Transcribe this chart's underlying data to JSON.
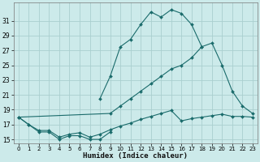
{
  "xlabel": "Humidex (Indice chaleur)",
  "bg_color": "#cceaea",
  "grid_color": "#aacfcf",
  "line_color": "#1a6b6b",
  "xlim": [
    -0.5,
    23.5
  ],
  "ylim": [
    14.5,
    33.5
  ],
  "yticks": [
    15,
    17,
    19,
    21,
    23,
    25,
    27,
    29,
    31
  ],
  "xticks": [
    0,
    1,
    2,
    3,
    4,
    5,
    6,
    7,
    8,
    9,
    10,
    11,
    12,
    13,
    14,
    15,
    16,
    17,
    18,
    19,
    20,
    21,
    22,
    23
  ],
  "series": [
    {
      "x": [
        0,
        1,
        2,
        3,
        4,
        5,
        6,
        7,
        8,
        9
      ],
      "y": [
        18.0,
        17.0,
        16.0,
        16.0,
        15.0,
        15.5,
        15.5,
        15.0,
        15.0,
        16.0
      ]
    },
    {
      "x": [
        0,
        1,
        2,
        3,
        4,
        5,
        6,
        7,
        8,
        9,
        10,
        11,
        12,
        13,
        14,
        15,
        16,
        17,
        18,
        19,
        20,
        21,
        22,
        23
      ],
      "y": [
        18.0,
        17.0,
        16.2,
        16.2,
        15.3,
        15.7,
        15.9,
        15.3,
        15.7,
        16.3,
        16.8,
        17.2,
        17.7,
        18.1,
        18.5,
        18.9,
        17.5,
        17.8,
        18.0,
        18.2,
        18.4,
        18.1,
        18.1,
        18.0
      ]
    },
    {
      "x": [
        0,
        9,
        10,
        11,
        12,
        13,
        14,
        15,
        16,
        17,
        18,
        19,
        20,
        21,
        22,
        23
      ],
      "y": [
        18.0,
        18.5,
        19.5,
        20.5,
        21.5,
        22.5,
        23.5,
        24.5,
        25.0,
        26.0,
        27.5,
        28.0,
        25.0,
        21.5,
        19.5,
        18.5
      ]
    },
    {
      "x": [
        8,
        9,
        10,
        11,
        12,
        13,
        14,
        15,
        16,
        17,
        18
      ],
      "y": [
        20.5,
        23.5,
        27.5,
        28.5,
        30.5,
        32.2,
        31.5,
        32.5,
        32.0,
        30.5,
        27.5
      ]
    }
  ]
}
